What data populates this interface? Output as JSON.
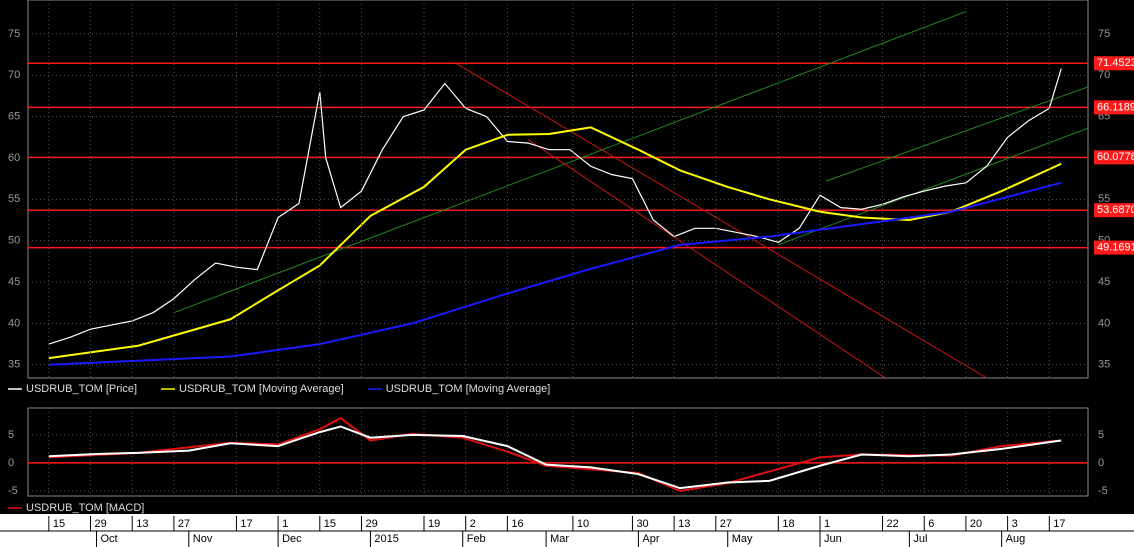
{
  "chart_data": [
    {
      "type": "line",
      "ylim": [
        33.4,
        79.1
      ],
      "yticks": [
        35,
        40,
        45,
        50,
        55,
        60,
        65,
        70,
        75
      ],
      "xlim": [
        "Sep 8",
        "Aug 30"
      ],
      "grid": true,
      "levels": [
        {
          "value": 71.4523,
          "label": "71.4523"
        },
        {
          "value": 66.1189,
          "label": "66.1189"
        },
        {
          "value": 60.0778,
          "label": "60.0778"
        },
        {
          "value": 53.687,
          "label": "53.6870"
        },
        {
          "value": 49.1691,
          "label": "49.1691"
        }
      ],
      "level_color": "#ff1a1a",
      "trend_lines": [
        {
          "color": "#1f8a1f",
          "x": [
            "Oct 27",
            "Jul 20"
          ],
          "values": [
            41.3,
            77.7
          ]
        },
        {
          "color": "#1f8a1f",
          "x": [
            "Jun 3",
            "Aug 30"
          ],
          "values": [
            57.2,
            68.6
          ]
        },
        {
          "color": "#1f8a1f",
          "x": [
            "May 18",
            "Aug 30"
          ],
          "values": [
            49.5,
            63.6
          ]
        },
        {
          "color": "#c81414",
          "x": [
            "Jan 29",
            "Jul 27"
          ],
          "values": [
            71.6,
            33.4
          ]
        },
        {
          "color": "#c81414",
          "x": [
            "Feb 23",
            "Jun 23"
          ],
          "values": [
            62.2,
            33.4
          ]
        }
      ],
      "series": [
        {
          "name": "USDRUB_TOM [Price]",
          "color": "#ffffff",
          "x": [
            "Sep 15",
            "Sep 22",
            "Sep 29",
            "Oct 6",
            "Oct 13",
            "Oct 20",
            "Oct 27",
            "Nov 3",
            "Nov 10",
            "Nov 17",
            "Nov 24",
            "Dec 1",
            "Dec 8",
            "Dec 15",
            "Dec 17",
            "Dec 22",
            "Dec 29",
            "Jan 5",
            "Jan 12",
            "Jan 19",
            "Jan 26",
            "Feb 2",
            "Feb 9",
            "Feb 16",
            "Feb 23",
            "Mar 2",
            "Mar 9",
            "Mar 16",
            "Mar 23",
            "Mar 30",
            "Apr 6",
            "Apr 13",
            "Apr 20",
            "Apr 27",
            "May 4",
            "May 11",
            "May 18",
            "May 25",
            "Jun 1",
            "Jun 8",
            "Jun 15",
            "Jun 22",
            "Jun 29",
            "Jul 6",
            "Jul 13",
            "Jul 20",
            "Jul 27",
            "Aug 3",
            "Aug 10",
            "Aug 17",
            "Aug 21"
          ],
          "values": [
            37.5,
            38.3,
            39.3,
            39.8,
            40.3,
            41.3,
            43.0,
            45.3,
            47.3,
            46.8,
            46.5,
            52.8,
            54.5,
            68,
            60,
            54,
            56,
            61,
            65,
            65.8,
            69,
            66,
            65,
            62,
            61.8,
            61,
            61,
            59,
            58,
            57.5,
            52.5,
            50.5,
            51.5,
            51.5,
            51,
            50.5,
            49.8,
            51.5,
            55.5,
            54,
            53.8,
            54.4,
            55.3,
            56,
            56.6,
            57,
            59,
            62.5,
            64.5,
            66,
            70.8
          ]
        },
        {
          "name": "USDRUB_TOM [Moving Average]",
          "color": "#ffff00",
          "x": [
            "Sep 15",
            "Oct 15",
            "Nov 15",
            "Dec 1",
            "Dec 15",
            "Jan 1",
            "Jan 19",
            "Feb 2",
            "Feb 16",
            "Mar 2",
            "Mar 16",
            "Apr 1",
            "Apr 15",
            "May 1",
            "May 15",
            "Jun 1",
            "Jun 15",
            "Jul 1",
            "Jul 15",
            "Aug 1",
            "Aug 21"
          ],
          "values": [
            35.8,
            37.3,
            40.5,
            44,
            47,
            53,
            56.5,
            61,
            62.8,
            62.9,
            63.7,
            61,
            58.5,
            56.5,
            55,
            53.5,
            52.8,
            52.5,
            53.5,
            56,
            59.3
          ]
        },
        {
          "name": "USDRUB_TOM [Moving Average]",
          "color": "#1a1aff",
          "x": [
            "Sep 15",
            "Nov 15",
            "Dec 15",
            "Jan 15",
            "Feb 15",
            "Mar 15",
            "Apr 15",
            "May 15",
            "Jun 15",
            "Jul 15",
            "Aug 21"
          ],
          "values": [
            35,
            36,
            37.5,
            40,
            43.5,
            46.5,
            49.5,
            50.5,
            52,
            53.5,
            57
          ]
        }
      ]
    },
    {
      "type": "line",
      "ylim": [
        -5.9,
        9.8
      ],
      "yticks": [
        -5,
        0,
        5
      ],
      "xlim": [
        "Sep 8",
        "Aug 30"
      ],
      "grid": true,
      "levels": [
        0
      ],
      "level_color": "#ff1a1a",
      "series": [
        {
          "name": "USDRUB_TOM [MACD]",
          "color": "#e01010",
          "x": [
            "Sep 15",
            "Oct 15",
            "Nov 15",
            "Dec 1",
            "Dec 15",
            "Dec 22",
            "Jan 1",
            "Jan 15",
            "Feb 1",
            "Feb 16",
            "Mar 1",
            "Apr 1",
            "Apr 15",
            "May 1",
            "Jun 1",
            "Jun 15",
            "Jul 15",
            "Aug 1",
            "Aug 21"
          ],
          "values": [
            1.0,
            1.8,
            3.6,
            3.3,
            6.0,
            8.0,
            4.0,
            5.2,
            4.5,
            2.0,
            -0.5,
            -1.8,
            -5.0,
            -3.6,
            1.0,
            1.5,
            1.3,
            3.0,
            4.0
          ]
        },
        {
          "color": "#ffffff",
          "x": [
            "Sep 15",
            "Oct 1",
            "Oct 15",
            "Nov 1",
            "Nov 15",
            "Dec 1",
            "Dec 15",
            "Dec 22",
            "Jan 1",
            "Jan 15",
            "Feb 1",
            "Feb 16",
            "Mar 1",
            "Mar 16",
            "Apr 1",
            "Apr 15",
            "May 1",
            "May 15",
            "Jun 1",
            "Jun 15",
            "Jul 1",
            "Jul 15",
            "Aug 1",
            "Aug 21"
          ],
          "values": [
            1.2,
            1.6,
            1.8,
            2.2,
            3.5,
            3.0,
            5.5,
            6.5,
            4.5,
            5.0,
            4.8,
            3.0,
            -0.3,
            -0.8,
            -2.0,
            -4.5,
            -3.5,
            -3.2,
            -0.5,
            1.5,
            1.2,
            1.5,
            2.5,
            4.0
          ]
        }
      ],
      "xticks": [
        {
          "value": "Sep 15",
          "label": "15"
        },
        {
          "value": "Sep 29",
          "label": "29"
        },
        {
          "value": "Oct 13",
          "label": "13"
        },
        {
          "value": "Oct 27",
          "label": "27"
        },
        {
          "value": "Nov 17",
          "label": "17"
        },
        {
          "value": "Dec 1",
          "label": "1"
        },
        {
          "value": "Dec 15",
          "label": "15"
        },
        {
          "value": "Dec 29",
          "label": "29"
        },
        {
          "value": "Jan 19",
          "label": "19"
        },
        {
          "value": "Feb 2",
          "label": "2"
        },
        {
          "value": "Feb 16",
          "label": "16"
        },
        {
          "value": "Mar 10",
          "label": "10"
        },
        {
          "value": "Mar 30",
          "label": "30"
        },
        {
          "value": "Apr 13",
          "label": "13"
        },
        {
          "value": "Apr 27",
          "label": "27"
        },
        {
          "value": "May 18",
          "label": "18"
        },
        {
          "value": "Jun 1",
          "label": "1"
        },
        {
          "value": "Jun 22",
          "label": "22"
        },
        {
          "value": "Jul 6",
          "label": "6"
        },
        {
          "value": "Jul 20",
          "label": "20"
        },
        {
          "value": "Aug 3",
          "label": "3"
        },
        {
          "value": "Aug 17",
          "label": "17"
        }
      ],
      "month_ticks": [
        {
          "value": "Oct 1",
          "label": "Oct"
        },
        {
          "value": "Nov 1",
          "label": "Nov"
        },
        {
          "value": "Dec 1",
          "label": "Dec"
        },
        {
          "value": "Jan 1",
          "label": "2015"
        },
        {
          "value": "Feb 1",
          "label": "Feb"
        },
        {
          "value": "Mar 1",
          "label": "Mar"
        },
        {
          "value": "Apr 1",
          "label": "Apr"
        },
        {
          "value": "May 1",
          "label": "May"
        },
        {
          "value": "Jun 1",
          "label": "Jun"
        },
        {
          "value": "Jul 1",
          "label": "Jul"
        },
        {
          "value": "Aug 1",
          "label": "Aug"
        }
      ]
    }
  ]
}
